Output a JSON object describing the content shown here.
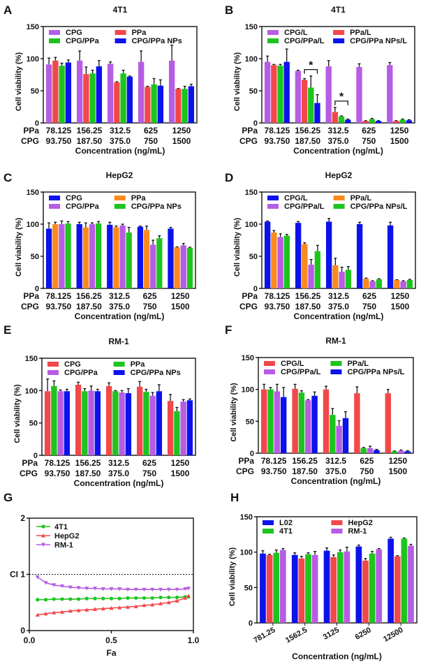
{
  "colors": {
    "purple": "#b65de3",
    "red": "#f2484a",
    "green": "#1ec41e",
    "blue": "#0b12ec",
    "orange": "#fb8a1e"
  },
  "chart_data": [
    {
      "panel": "A",
      "type": "bar",
      "title": "4T1",
      "ylabel": "Cell viability (%)",
      "xlabel": "Concentration (ng/mL)",
      "ylim": [
        0,
        150
      ],
      "yticks": [
        0,
        50,
        100,
        150
      ],
      "row_labels": [
        "PPa",
        "CPG"
      ],
      "categories": [
        [
          "78.125",
          "93.750"
        ],
        [
          "156.25",
          "187.50"
        ],
        [
          "312.5",
          "375.0"
        ],
        [
          "625",
          "750"
        ],
        [
          "1250",
          "1500"
        ]
      ],
      "series": [
        {
          "name": "CPG",
          "color": "purple",
          "values": [
            91,
            97,
            92,
            95,
            97
          ],
          "errors": [
            10,
            15,
            3,
            17,
            24
          ]
        },
        {
          "name": "PPa",
          "color": "red",
          "values": [
            97,
            76,
            63,
            56,
            53
          ],
          "errors": [
            5,
            11,
            1,
            1,
            0.5
          ]
        },
        {
          "name": "CPG/PPa",
          "color": "green",
          "values": [
            89,
            77,
            77,
            60,
            53
          ],
          "errors": [
            4,
            5,
            5,
            9,
            4
          ]
        },
        {
          "name": "CPG/PPa NPs",
          "color": "blue",
          "values": [
            94,
            88,
            72,
            58,
            57
          ],
          "errors": [
            4,
            9,
            1,
            9,
            3
          ]
        }
      ]
    },
    {
      "panel": "B",
      "type": "bar",
      "title": "4T1",
      "ylabel": "Cell viability (%)",
      "xlabel": "Concentration (ng/mL)",
      "ylim": [
        0,
        150
      ],
      "yticks": [
        0,
        50,
        100,
        150
      ],
      "row_labels": [
        "PPa",
        "CPG"
      ],
      "categories": [
        [
          "78.125",
          "93.750"
        ],
        [
          "156.25",
          "187.50"
        ],
        [
          "312.5",
          "375.0"
        ],
        [
          "625",
          "750"
        ],
        [
          "1250",
          "1500"
        ]
      ],
      "series": [
        {
          "name": "CPG/L",
          "color": "purple",
          "values": [
            95,
            81,
            88,
            87,
            90
          ],
          "errors": [
            9,
            1,
            9,
            5,
            4
          ]
        },
        {
          "name": "PPa/L",
          "color": "red",
          "values": [
            90,
            67,
            17,
            3,
            3
          ],
          "errors": [
            1,
            2,
            7,
            0.5,
            0.5
          ]
        },
        {
          "name": "CPG/PPa/L",
          "color": "green",
          "values": [
            89,
            55,
            10,
            6,
            5
          ],
          "errors": [
            2,
            18,
            1,
            1,
            1
          ]
        },
        {
          "name": "CPG/PPa NPs/L",
          "color": "blue",
          "values": [
            95,
            31,
            5,
            3,
            4
          ],
          "errors": [
            20,
            13,
            1,
            0.5,
            1
          ]
        }
      ],
      "annotations": [
        {
          "group": 1,
          "from": 1,
          "to": 3,
          "level": 83,
          "text": "*"
        },
        {
          "group": 2,
          "from": 1,
          "to": 3,
          "level": 34,
          "text": "*"
        }
      ]
    },
    {
      "panel": "C",
      "type": "bar",
      "title": "HepG2",
      "ylabel": "Cell viability (%)",
      "xlabel": "Concentration (ng/mL)",
      "ylim": [
        0,
        150
      ],
      "yticks": [
        0,
        50,
        100,
        150
      ],
      "row_labels": [
        "PPa",
        "CPG"
      ],
      "categories": [
        [
          "78.125",
          "93.750"
        ],
        [
          "156.25",
          "187.50"
        ],
        [
          "312.5",
          "375.0"
        ],
        [
          "625",
          "750"
        ],
        [
          "1250",
          "1500"
        ]
      ],
      "series": [
        {
          "name": "CPG",
          "color": "blue",
          "values": [
            93,
            100,
            99,
            96,
            93
          ],
          "errors": [
            9,
            3,
            4,
            1,
            2
          ]
        },
        {
          "name": "PPa",
          "color": "orange",
          "values": [
            100,
            95,
            95,
            91,
            64
          ],
          "errors": [
            3,
            7,
            2,
            6,
            0.5
          ]
        },
        {
          "name": "CPG/PPa",
          "color": "purple",
          "values": [
            100,
            100,
            98,
            68,
            67
          ],
          "errors": [
            5,
            2,
            2,
            7,
            3
          ]
        },
        {
          "name": "CPG/PPa NPs",
          "color": "green",
          "values": [
            101,
            101,
            87,
            78,
            63
          ],
          "errors": [
            3,
            3,
            8,
            4,
            1
          ]
        }
      ]
    },
    {
      "panel": "D",
      "type": "bar",
      "title": "HepG2",
      "ylabel": "Cell viability (%)",
      "xlabel": "Concentration (ng/mL)",
      "ylim": [
        0,
        150
      ],
      "yticks": [
        0,
        50,
        100,
        150
      ],
      "row_labels": [
        "PPa",
        "CPG"
      ],
      "categories": [
        [
          "78.125",
          "93.750"
        ],
        [
          "156.25",
          "187.50"
        ],
        [
          "312.5",
          "375.0"
        ],
        [
          "625",
          "750"
        ],
        [
          "1250",
          "1500"
        ]
      ],
      "series": [
        {
          "name": "CPG/L",
          "color": "blue",
          "values": [
            104,
            102,
            104,
            100,
            98
          ],
          "errors": [
            1,
            2,
            5,
            3,
            5
          ]
        },
        {
          "name": "PPa/L",
          "color": "orange",
          "values": [
            87,
            69,
            36,
            15,
            13
          ],
          "errors": [
            3,
            2,
            11,
            1,
            0.5
          ]
        },
        {
          "name": "CPG/PPa/L",
          "color": "purple",
          "values": [
            80,
            37,
            26,
            11,
            11
          ],
          "errors": [
            5,
            8,
            7,
            1,
            1
          ]
        },
        {
          "name": "CPG/PPa NPs/L",
          "color": "green",
          "values": [
            82,
            58,
            29,
            14,
            13
          ],
          "errors": [
            2,
            9,
            5,
            1,
            1
          ]
        }
      ]
    },
    {
      "panel": "E",
      "type": "bar",
      "title": "RM-1",
      "ylabel": "Cell viability (%)",
      "xlabel": "Concentration (ng/mL)",
      "ylim": [
        0,
        150
      ],
      "yticks": [
        0,
        50,
        100,
        150
      ],
      "row_labels": [
        "PPa",
        "CPG"
      ],
      "categories": [
        [
          "78.125",
          "93.750"
        ],
        [
          "156.25",
          "187.50"
        ],
        [
          "312.5",
          "375.0"
        ],
        [
          "625",
          "750"
        ],
        [
          "1250",
          "1500"
        ]
      ],
      "series": [
        {
          "name": "CPG",
          "color": "red",
          "values": [
            99,
            109,
            107,
            106,
            84
          ],
          "errors": [
            19,
            4,
            5,
            8,
            10
          ]
        },
        {
          "name": "PPa",
          "color": "green",
          "values": [
            107,
            99,
            99,
            98,
            68
          ],
          "errors": [
            8,
            4,
            1,
            4,
            6
          ]
        },
        {
          "name": "CPG/PPa",
          "color": "purple",
          "values": [
            99,
            100,
            97,
            92,
            83
          ],
          "errors": [
            2,
            7,
            3,
            5,
            3
          ]
        },
        {
          "name": "CPG/PPa NPs",
          "color": "blue",
          "values": [
            99,
            99,
            96,
            99,
            85
          ],
          "errors": [
            3,
            3,
            7,
            10,
            2
          ]
        }
      ]
    },
    {
      "panel": "F",
      "type": "bar",
      "title": "RM-1",
      "ylabel": "Cell viability (%)",
      "xlabel": "Concentration (ng/mL)",
      "ylim": [
        0,
        150
      ],
      "yticks": [
        0,
        50,
        100,
        150
      ],
      "row_labels": [
        "PPa",
        "CPG"
      ],
      "categories": [
        [
          "78.125",
          "93.750"
        ],
        [
          "156.25",
          "187.50"
        ],
        [
          "312.5",
          "375.0"
        ],
        [
          "625",
          "750"
        ],
        [
          "1250",
          "1500"
        ]
      ],
      "series": [
        {
          "name": "CPG/L",
          "color": "red",
          "values": [
            100,
            101,
            100,
            94,
            94
          ],
          "errors": [
            8,
            7,
            5,
            10,
            6
          ]
        },
        {
          "name": "PPa/L",
          "color": "green",
          "values": [
            100,
            95,
            60,
            8,
            3
          ],
          "errors": [
            3,
            3,
            10,
            1,
            0.5
          ]
        },
        {
          "name": "CPG/PPa/L",
          "color": "purple",
          "values": [
            97,
            83,
            43,
            8,
            4
          ],
          "errors": [
            11,
            1,
            8,
            3,
            1
          ]
        },
        {
          "name": "CPG/PPa NPs/L",
          "color": "blue",
          "values": [
            88,
            90,
            55,
            5,
            3
          ],
          "errors": [
            15,
            6,
            10,
            1,
            1
          ]
        }
      ]
    },
    {
      "panel": "G",
      "type": "line",
      "title": "",
      "ylabel": "CI",
      "xlabel": "Fa",
      "xlim": [
        0,
        1
      ],
      "ylim": [
        0,
        2
      ],
      "xticks": [
        "0.0",
        "0.5",
        "1.0"
      ],
      "yticks": [
        "0",
        "1",
        "2"
      ],
      "reference_line": 1,
      "x": [
        0.05,
        0.1,
        0.15,
        0.2,
        0.25,
        0.3,
        0.35,
        0.4,
        0.45,
        0.5,
        0.55,
        0.6,
        0.65,
        0.7,
        0.75,
        0.8,
        0.85,
        0.9,
        0.95,
        0.97
      ],
      "series": [
        {
          "name": "4T1",
          "color": "green",
          "marker": "circle",
          "values": [
            0.55,
            0.55,
            0.56,
            0.56,
            0.56,
            0.56,
            0.57,
            0.57,
            0.57,
            0.57,
            0.57,
            0.58,
            0.58,
            0.58,
            0.58,
            0.59,
            0.59,
            0.59,
            0.6,
            0.6
          ]
        },
        {
          "name": "HepG2",
          "color": "red",
          "marker": "triangle-up",
          "values": [
            0.28,
            0.3,
            0.32,
            0.33,
            0.35,
            0.36,
            0.37,
            0.38,
            0.39,
            0.4,
            0.41,
            0.42,
            0.43,
            0.45,
            0.46,
            0.48,
            0.5,
            0.53,
            0.58,
            0.62
          ]
        },
        {
          "name": "RM-1",
          "color": "purple",
          "marker": "triangle-down",
          "values": [
            0.95,
            0.85,
            0.81,
            0.79,
            0.77,
            0.76,
            0.75,
            0.75,
            0.74,
            0.74,
            0.74,
            0.73,
            0.73,
            0.73,
            0.73,
            0.73,
            0.73,
            0.73,
            0.74,
            0.75
          ]
        }
      ]
    },
    {
      "panel": "H",
      "type": "bar",
      "title": "",
      "ylabel": "Cell viability (%)",
      "xlabel": "Concentration (ng/mL)",
      "ylim": [
        0,
        150
      ],
      "yticks": [
        0,
        50,
        100,
        150
      ],
      "row_labels": [],
      "categories": [
        [
          "781.25"
        ],
        [
          "1562.5"
        ],
        [
          "3125"
        ],
        [
          "6250"
        ],
        [
          "12500"
        ]
      ],
      "rotated_ticks": true,
      "series": [
        {
          "name": "L02",
          "color": "blue",
          "values": [
            98,
            96,
            102,
            108,
            119
          ],
          "errors": [
            4,
            3,
            4,
            2,
            2
          ]
        },
        {
          "name": "HepG2",
          "color": "red",
          "values": [
            96,
            91,
            93,
            88,
            94
          ],
          "errors": [
            1,
            3,
            3,
            3,
            1
          ]
        },
        {
          "name": "4T1",
          "color": "green",
          "values": [
            99,
            97,
            100,
            98,
            119
          ],
          "errors": [
            4,
            2,
            3,
            3,
            1
          ]
        },
        {
          "name": "RM-1",
          "color": "purple",
          "values": [
            103,
            96,
            101,
            104,
            109
          ],
          "errors": [
            2,
            5,
            6,
            1,
            2
          ]
        }
      ]
    }
  ]
}
